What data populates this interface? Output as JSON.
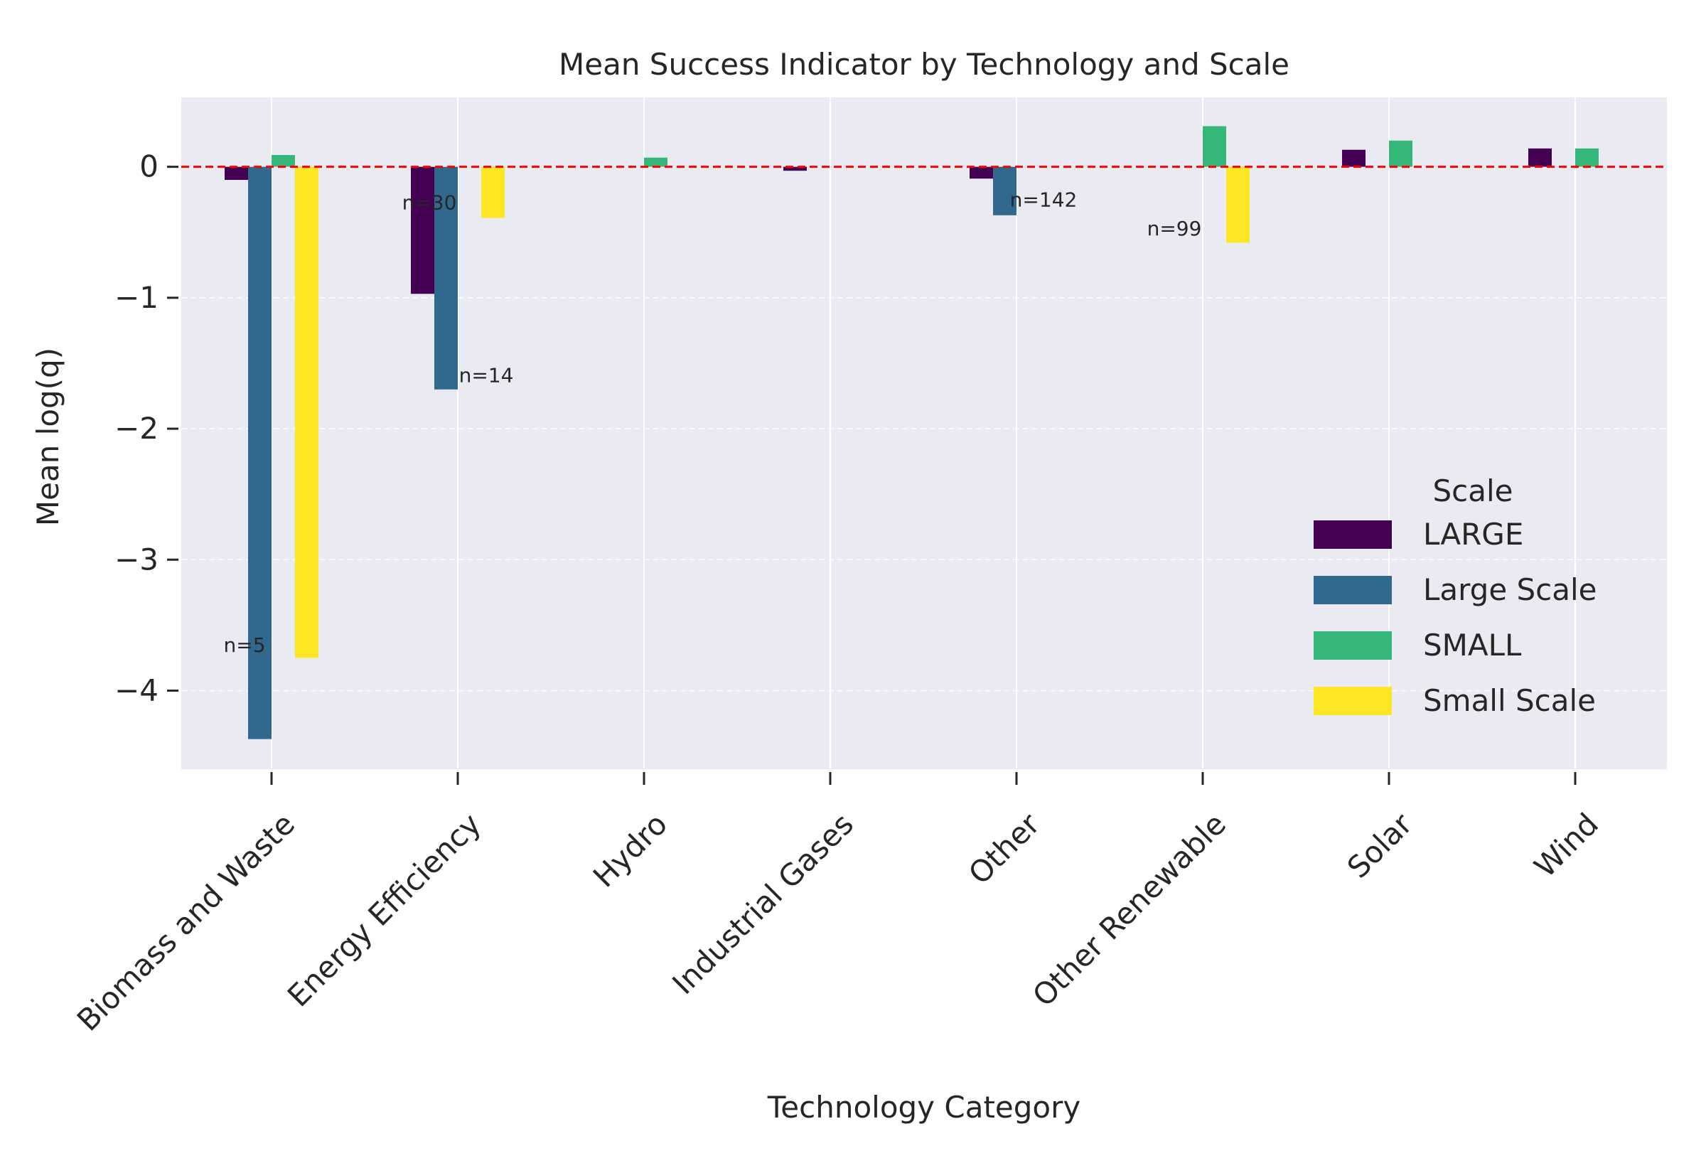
{
  "chart_data": {
    "type": "bar",
    "title": "Mean Success Indicator by Technology and Scale",
    "xlabel": "Technology Category",
    "ylabel": "Mean log(q)",
    "ylim": [
      -4.6,
      0.53
    ],
    "yticks": [
      0,
      -1,
      -2,
      -3,
      -4
    ],
    "ytick_labels": [
      "0",
      "−1",
      "−2",
      "−3",
      "−4"
    ],
    "categories": [
      "Biomass and Waste",
      "Energy Efficiency",
      "Hydro",
      "Industrial Gases",
      "Other",
      "Other Renewable",
      "Solar",
      "Wind"
    ],
    "series": [
      {
        "name": "LARGE",
        "color": "#440154",
        "values": [
          -0.1,
          -0.97,
          null,
          -0.03,
          -0.09,
          null,
          0.13,
          0.14
        ]
      },
      {
        "name": "Large Scale",
        "color": "#31688e",
        "values": [
          -4.37,
          -1.7,
          null,
          null,
          -0.37,
          null,
          null,
          null
        ]
      },
      {
        "name": "SMALL",
        "color": "#35b779",
        "values": [
          0.09,
          null,
          0.07,
          null,
          null,
          0.31,
          0.2,
          0.14
        ]
      },
      {
        "name": "Small Scale",
        "color": "#fde725",
        "values": [
          -3.75,
          -0.39,
          null,
          null,
          null,
          -0.58,
          null,
          null
        ]
      }
    ],
    "reference_line": {
      "y": 0,
      "color": "#ff0000",
      "style": "dashed"
    },
    "annotations": [
      {
        "text": "n=5",
        "category_index": 0,
        "y": -3.65
      },
      {
        "text": "n=30",
        "category_index": 1,
        "y": -0.27
      },
      {
        "text": "n=14",
        "category_index": 1,
        "y": -1.59
      },
      {
        "text": "n=142",
        "category_index": 4,
        "y": -0.25
      },
      {
        "text": "n=99",
        "category_index": 5,
        "y": -0.47
      }
    ],
    "legend": {
      "title": "Scale",
      "placement": "right"
    },
    "grid": true
  }
}
